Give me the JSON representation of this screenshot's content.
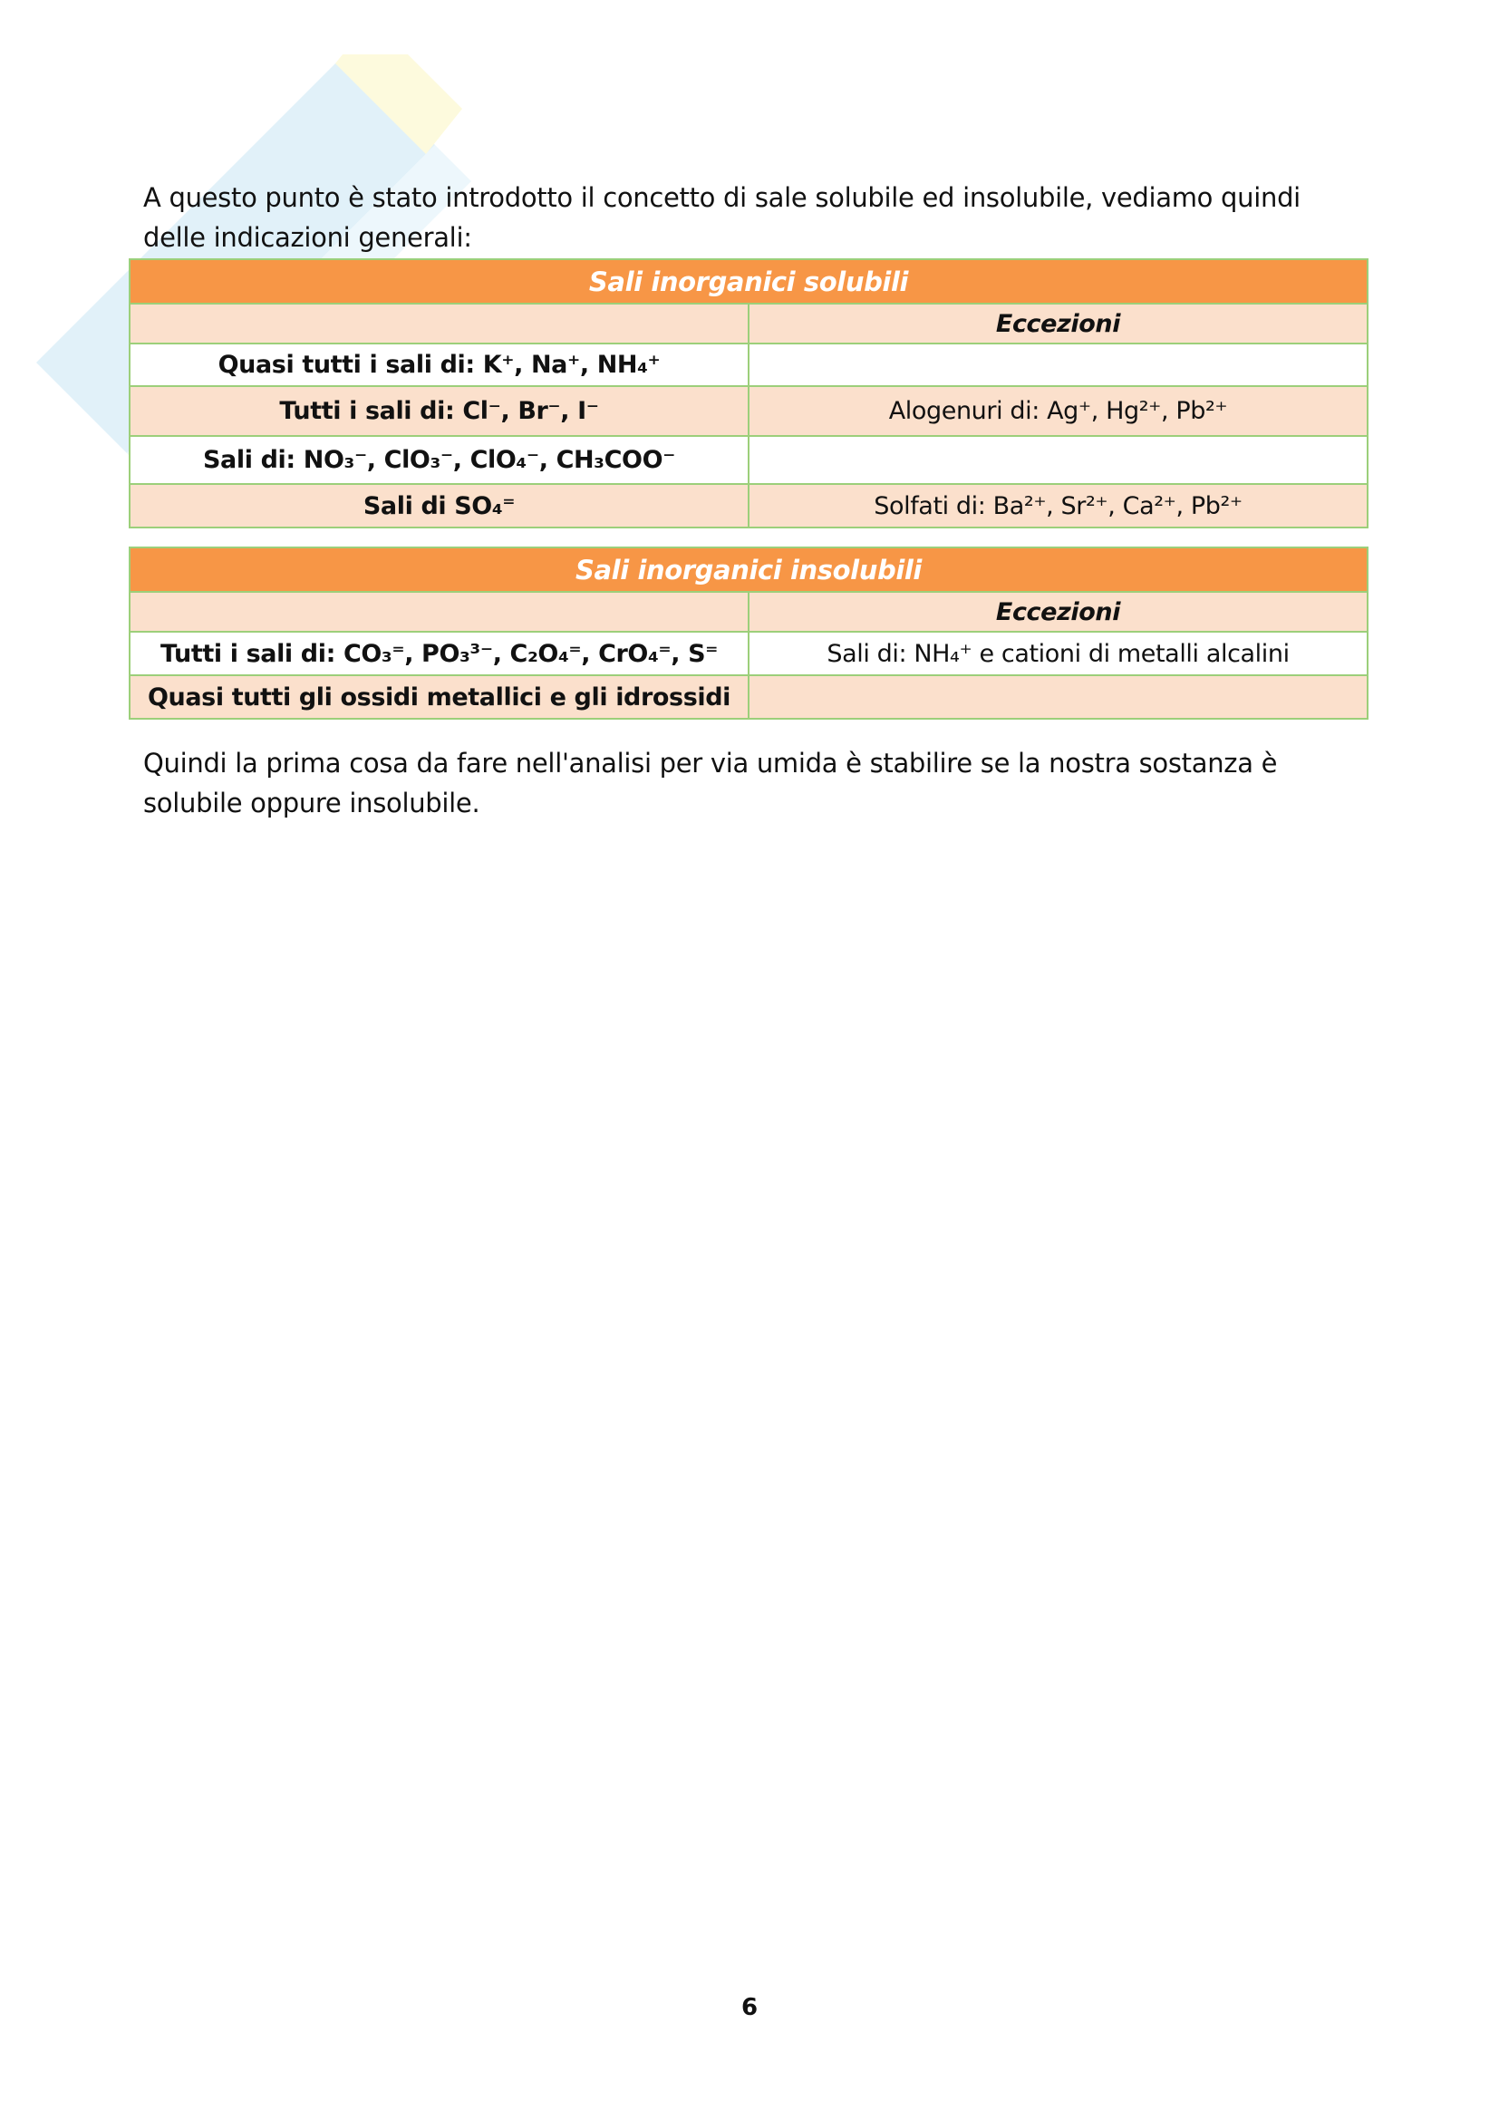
{
  "intro": "A questo punto è stato introdotto il concetto di sale solubile ed insolubile, vediamo quindi delle indicazioni generali:",
  "soluble": {
    "title": "Sali inorganici solubili",
    "exceptions_header": "Eccezioni",
    "rows": [
      {
        "salt": "Quasi tutti i sali di: K⁺, Na⁺, NH₄⁺",
        "exception": ""
      },
      {
        "salt": "Tutti i sali di: Cl⁻, Br⁻, I⁻",
        "exception": "Alogenuri di: Ag⁺, Hg²⁺, Pb²⁺"
      },
      {
        "salt": "Sali di: NO₃⁻, ClO₃⁻, ClO₄⁻, CH₃COO⁻",
        "exception": ""
      },
      {
        "salt": "Sali di SO₄⁼",
        "exception": "Solfati di: Ba²⁺, Sr²⁺, Ca²⁺, Pb²⁺"
      }
    ]
  },
  "insoluble": {
    "title": "Sali inorganici insolubili",
    "exceptions_header": "Eccezioni",
    "rows": [
      {
        "salt": "Tutti i sali di: CO₃⁼, PO₃³⁻, C₂O₄⁼, CrO₄⁼, S⁼",
        "exception": "Sali di:  NH₄⁺ e cationi di metalli alcalini"
      },
      {
        "salt": "Quasi tutti gli ossidi metallici e gli idrossidi",
        "exception": ""
      }
    ]
  },
  "conclusion": "Quindi la prima cosa da fare nell'analisi per via umida è stabilire se la nostra sostanza è solubile oppure insolubile.",
  "page_number": "6",
  "colors": {
    "header": "#f79646",
    "row_peach": "#fbe0cc",
    "border": "#9ccf7a"
  }
}
